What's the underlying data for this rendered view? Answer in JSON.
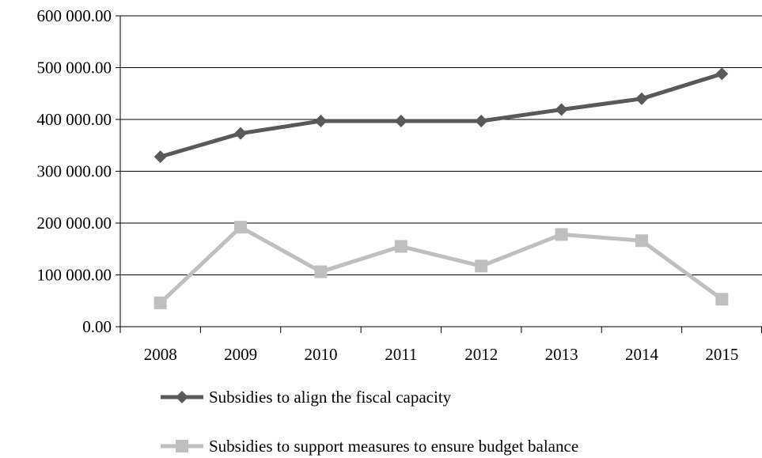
{
  "chart_data": {
    "type": "line",
    "categories": [
      "2008",
      "2009",
      "2010",
      "2011",
      "2012",
      "2013",
      "2014",
      "2015"
    ],
    "ylim": [
      0,
      600000
    ],
    "yticks": [
      0,
      100000,
      200000,
      300000,
      400000,
      500000,
      600000
    ],
    "ytick_labels": [
      "0.00",
      "100 000.00",
      "200 000.00",
      "300 000.00",
      "400 000.00",
      "500 000.00",
      "600 000.00"
    ],
    "grid": true,
    "legend_position": "bottom",
    "series": [
      {
        "name": "Subsidies to align the fiscal capacity",
        "values": [
          328000,
          373000,
          397000,
          397000,
          397000,
          419000,
          440000,
          488000
        ],
        "color": "#595959",
        "marker": "diamond"
      },
      {
        "name": "Subsidies to support measures to ensure budget balance",
        "values": [
          46000,
          192000,
          106000,
          155000,
          117000,
          178000,
          166000,
          53000
        ],
        "color": "#bfbfbf",
        "marker": "square"
      }
    ]
  }
}
